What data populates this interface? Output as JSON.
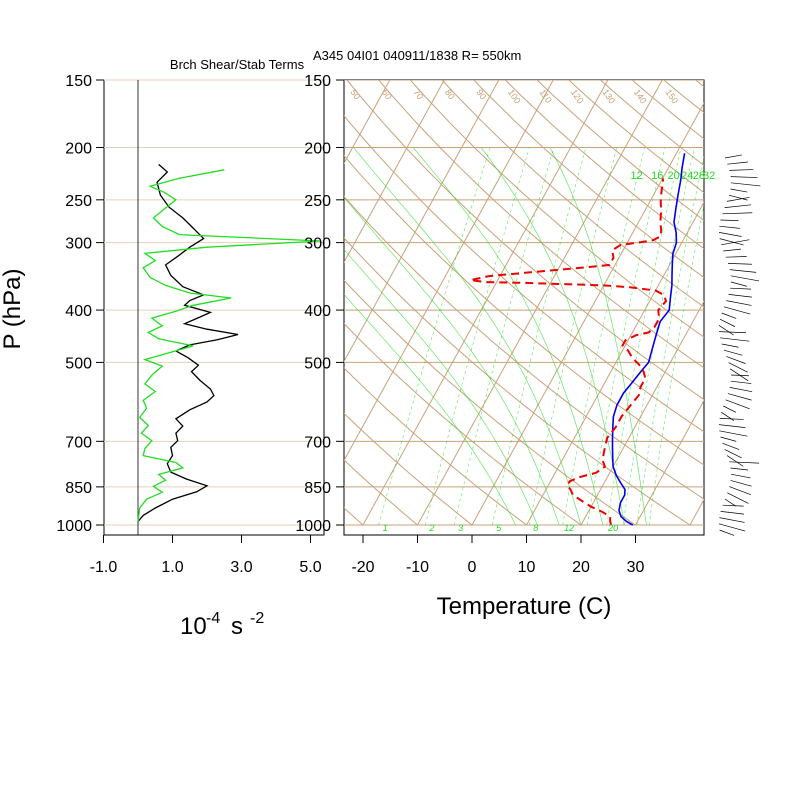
{
  "header": {
    "left_title": "Brch Shear/Stab Terms",
    "right_title": "A345 04I01 040911/1838 R= 550km"
  },
  "colors": {
    "skewt_grid": "#c8a27a",
    "mixing_ratio": "#22dd22",
    "temperature_line": "#0000ee",
    "dewpoint_line": "#ee0000",
    "shear_curve": "#000000",
    "stab_curve": "#22dd22"
  },
  "chart_data": [
    {
      "type": "line",
      "name": "brch-shear-stab",
      "title": "Brch Shear/Stab Terms",
      "xlabel": "10",
      "xlabel_exp": "-4",
      "xlabel_unit": "s",
      "xlabel_unit_exp": "-2",
      "ylabel": "P (hPa)",
      "xlim": [
        -1.0,
        5.0
      ],
      "x_ticks": [
        "-1.0",
        "1.0",
        "3.0",
        "5.0"
      ],
      "x_tick_values": [
        -1.0,
        1.0,
        3.0,
        5.0
      ],
      "y_scale": "log",
      "ylim": [
        1000,
        150
      ],
      "y_ticks": [
        150,
        200,
        250,
        300,
        400,
        500,
        700,
        850,
        1000
      ],
      "y_tick_labels": [
        "150",
        "200",
        "250",
        "300",
        "400",
        "500",
        "700",
        "850",
        "1000"
      ],
      "series": [
        {
          "key": "black",
          "points": [
            [
              0.6,
              215
            ],
            [
              0.85,
              222
            ],
            [
              0.55,
              232
            ],
            [
              0.65,
              245
            ],
            [
              0.9,
              258
            ],
            [
              1.3,
              270
            ],
            [
              1.6,
              282
            ],
            [
              1.9,
              295
            ],
            [
              1.5,
              306
            ],
            [
              1.15,
              318
            ],
            [
              0.8,
              330
            ],
            [
              0.95,
              345
            ],
            [
              1.3,
              362
            ],
            [
              1.9,
              375
            ],
            [
              1.5,
              384
            ],
            [
              1.35,
              392
            ],
            [
              2.1,
              404
            ],
            [
              1.8,
              412
            ],
            [
              1.35,
              424
            ],
            [
              2.0,
              434
            ],
            [
              2.9,
              444
            ],
            [
              2.3,
              454
            ],
            [
              1.5,
              464
            ],
            [
              1.1,
              476
            ],
            [
              1.45,
              490
            ],
            [
              1.75,
              506
            ],
            [
              1.55,
              520
            ],
            [
              1.8,
              540
            ],
            [
              2.1,
              560
            ],
            [
              2.2,
              576
            ],
            [
              2.0,
              592
            ],
            [
              1.5,
              612
            ],
            [
              1.1,
              636
            ],
            [
              1.3,
              656
            ],
            [
              1.1,
              676
            ],
            [
              1.15,
              698
            ],
            [
              0.95,
              718
            ],
            [
              1.0,
              744
            ],
            [
              0.85,
              770
            ],
            [
              0.95,
              798
            ],
            [
              1.4,
              822
            ],
            [
              2.0,
              846
            ],
            [
              1.7,
              868
            ],
            [
              1.0,
              896
            ],
            [
              0.5,
              930
            ],
            [
              0.15,
              960
            ],
            [
              0.0,
              985
            ]
          ]
        },
        {
          "key": "green",
          "points": [
            [
              2.5,
              220
            ],
            [
              1.2,
              228
            ],
            [
              0.35,
              236
            ],
            [
              0.75,
              242
            ],
            [
              1.1,
              250
            ],
            [
              0.7,
              262
            ],
            [
              0.45,
              270
            ],
            [
              0.7,
              280
            ],
            [
              1.2,
              290
            ],
            [
              5.3,
              298
            ],
            [
              2.0,
              306
            ],
            [
              0.2,
              314
            ],
            [
              0.5,
              324
            ],
            [
              0.15,
              334
            ],
            [
              0.35,
              348
            ],
            [
              0.8,
              360
            ],
            [
              1.5,
              372
            ],
            [
              2.7,
              380
            ],
            [
              1.6,
              392
            ],
            [
              1.1,
              402
            ],
            [
              0.4,
              414
            ],
            [
              0.7,
              428
            ],
            [
              0.3,
              440
            ],
            [
              0.6,
              452
            ],
            [
              1.6,
              466
            ],
            [
              0.9,
              480
            ],
            [
              0.2,
              494
            ],
            [
              0.7,
              508
            ],
            [
              0.4,
              528
            ],
            [
              0.2,
              548
            ],
            [
              0.5,
              566
            ],
            [
              0.15,
              588
            ],
            [
              0.25,
              608
            ],
            [
              0.05,
              632
            ],
            [
              0.3,
              654
            ],
            [
              0.1,
              676
            ],
            [
              0.4,
              698
            ],
            [
              0.2,
              722
            ],
            [
              0.15,
              744
            ],
            [
              1.1,
              766
            ],
            [
              1.3,
              784
            ],
            [
              0.6,
              806
            ],
            [
              0.8,
              826
            ],
            [
              0.45,
              848
            ],
            [
              0.7,
              870
            ],
            [
              0.25,
              896
            ],
            [
              0.05,
              930
            ],
            [
              0.0,
              985
            ]
          ]
        }
      ]
    },
    {
      "type": "line",
      "name": "skew-t-log-p",
      "title": "A345 04I01 040911/1838 R= 550km",
      "xlabel": "Temperature (C)",
      "xlim": [
        -23,
        40
      ],
      "x_ticks": [
        "-20",
        "-10",
        "0",
        "10",
        "20",
        "30"
      ],
      "x_tick_values": [
        -20,
        -10,
        0,
        10,
        20,
        30
      ],
      "y_scale": "log",
      "ylim": [
        1000,
        150
      ],
      "y_ticks": [
        150,
        200,
        250,
        300,
        400,
        500,
        700,
        850,
        1000
      ],
      "y_tick_labels": [
        "150",
        "200",
        "250",
        "300",
        "400",
        "500",
        "700",
        "850",
        "1000"
      ],
      "mixing_ratio_labels_top": [
        "12",
        "16",
        "20",
        "24",
        "28",
        "32"
      ],
      "mixing_ratio_labels_bottom": [
        "1",
        "2",
        "3",
        "5",
        "8",
        "12",
        "20"
      ],
      "dry_adiabat_labels": [
        "50",
        "60",
        "70",
        "80",
        "90",
        "100",
        "110",
        "120",
        "130",
        "140",
        "150"
      ],
      "series": [
        {
          "key": "temperature",
          "points": [
            [
              29.5,
              1000
            ],
            [
              28,
              985
            ],
            [
              26.5,
              965
            ],
            [
              25.5,
              940
            ],
            [
              25,
              910
            ],
            [
              25,
              880
            ],
            [
              24.5,
              860
            ],
            [
              23,
              835
            ],
            [
              21.5,
              810
            ],
            [
              20,
              780
            ],
            [
              19,
              750
            ],
            [
              18,
              720
            ],
            [
              17,
              690
            ],
            [
              16,
              660
            ],
            [
              15,
              630
            ],
            [
              14.5,
              600
            ],
            [
              14.5,
              570
            ],
            [
              15,
              545
            ],
            [
              15.5,
              520
            ],
            [
              16,
              500
            ],
            [
              15.5,
              480
            ],
            [
              15,
              460
            ],
            [
              14.5,
              440
            ],
            [
              14,
              420
            ],
            [
              14.5,
              400
            ],
            [
              13.5,
              380
            ],
            [
              12.5,
              360
            ],
            [
              11.5,
              345
            ],
            [
              10.5,
              330
            ],
            [
              9.5,
              315
            ],
            [
              9,
              300
            ],
            [
              8,
              288
            ],
            [
              6.5,
              275
            ],
            [
              5.5,
              260
            ],
            [
              4.5,
              245
            ],
            [
              3.5,
              230
            ],
            [
              2.5,
              218
            ],
            [
              1.5,
              205
            ]
          ]
        },
        {
          "key": "dewpoint",
          "points": [
            [
              25.5,
              1000
            ],
            [
              25,
              985
            ],
            [
              24.5,
              965
            ],
            [
              22.5,
              945
            ],
            [
              20,
              925
            ],
            [
              18,
              905
            ],
            [
              15.5,
              880
            ],
            [
              14.5,
              860
            ],
            [
              13.5,
              845
            ],
            [
              13.5,
              830
            ],
            [
              15,
              815
            ],
            [
              17.5,
              800
            ],
            [
              18.5,
              780
            ],
            [
              17.5,
              760
            ],
            [
              17,
              740
            ],
            [
              16.5,
              715
            ],
            [
              16,
              690
            ],
            [
              16.5,
              660
            ],
            [
              16.5,
              630
            ],
            [
              17,
              600
            ],
            [
              17.5,
              575
            ],
            [
              17,
              555
            ],
            [
              17,
              535
            ],
            [
              16,
              520
            ],
            [
              14.5,
              505
            ],
            [
              12.5,
              490
            ],
            [
              11,
              475
            ],
            [
              9.5,
              465
            ],
            [
              9.5,
              455
            ],
            [
              11,
              445
            ],
            [
              13,
              440
            ],
            [
              13.5,
              430
            ],
            [
              13.5,
              415
            ],
            [
              12.5,
              400
            ],
            [
              13,
              385
            ],
            [
              12,
              375
            ],
            [
              10,
              368
            ],
            [
              5,
              363
            ],
            [
              0,
              360
            ],
            [
              -8,
              358
            ],
            [
              -16,
              356
            ],
            [
              -22,
              355
            ],
            [
              -25,
              352
            ],
            [
              -22,
              346
            ],
            [
              -14,
              340
            ],
            [
              -6,
              334
            ],
            [
              -1,
              330
            ],
            [
              -1,
              320
            ],
            [
              -2,
              310
            ],
            [
              -1,
              303
            ],
            [
              2,
              300
            ],
            [
              4.5,
              297
            ],
            [
              5.5,
              292
            ],
            [
              5,
              285
            ],
            [
              4,
              275
            ],
            [
              3,
              262
            ],
            [
              2,
              252
            ],
            [
              1,
              240
            ],
            [
              0.5,
              232
            ],
            [
              0,
              228
            ]
          ]
        }
      ]
    }
  ]
}
